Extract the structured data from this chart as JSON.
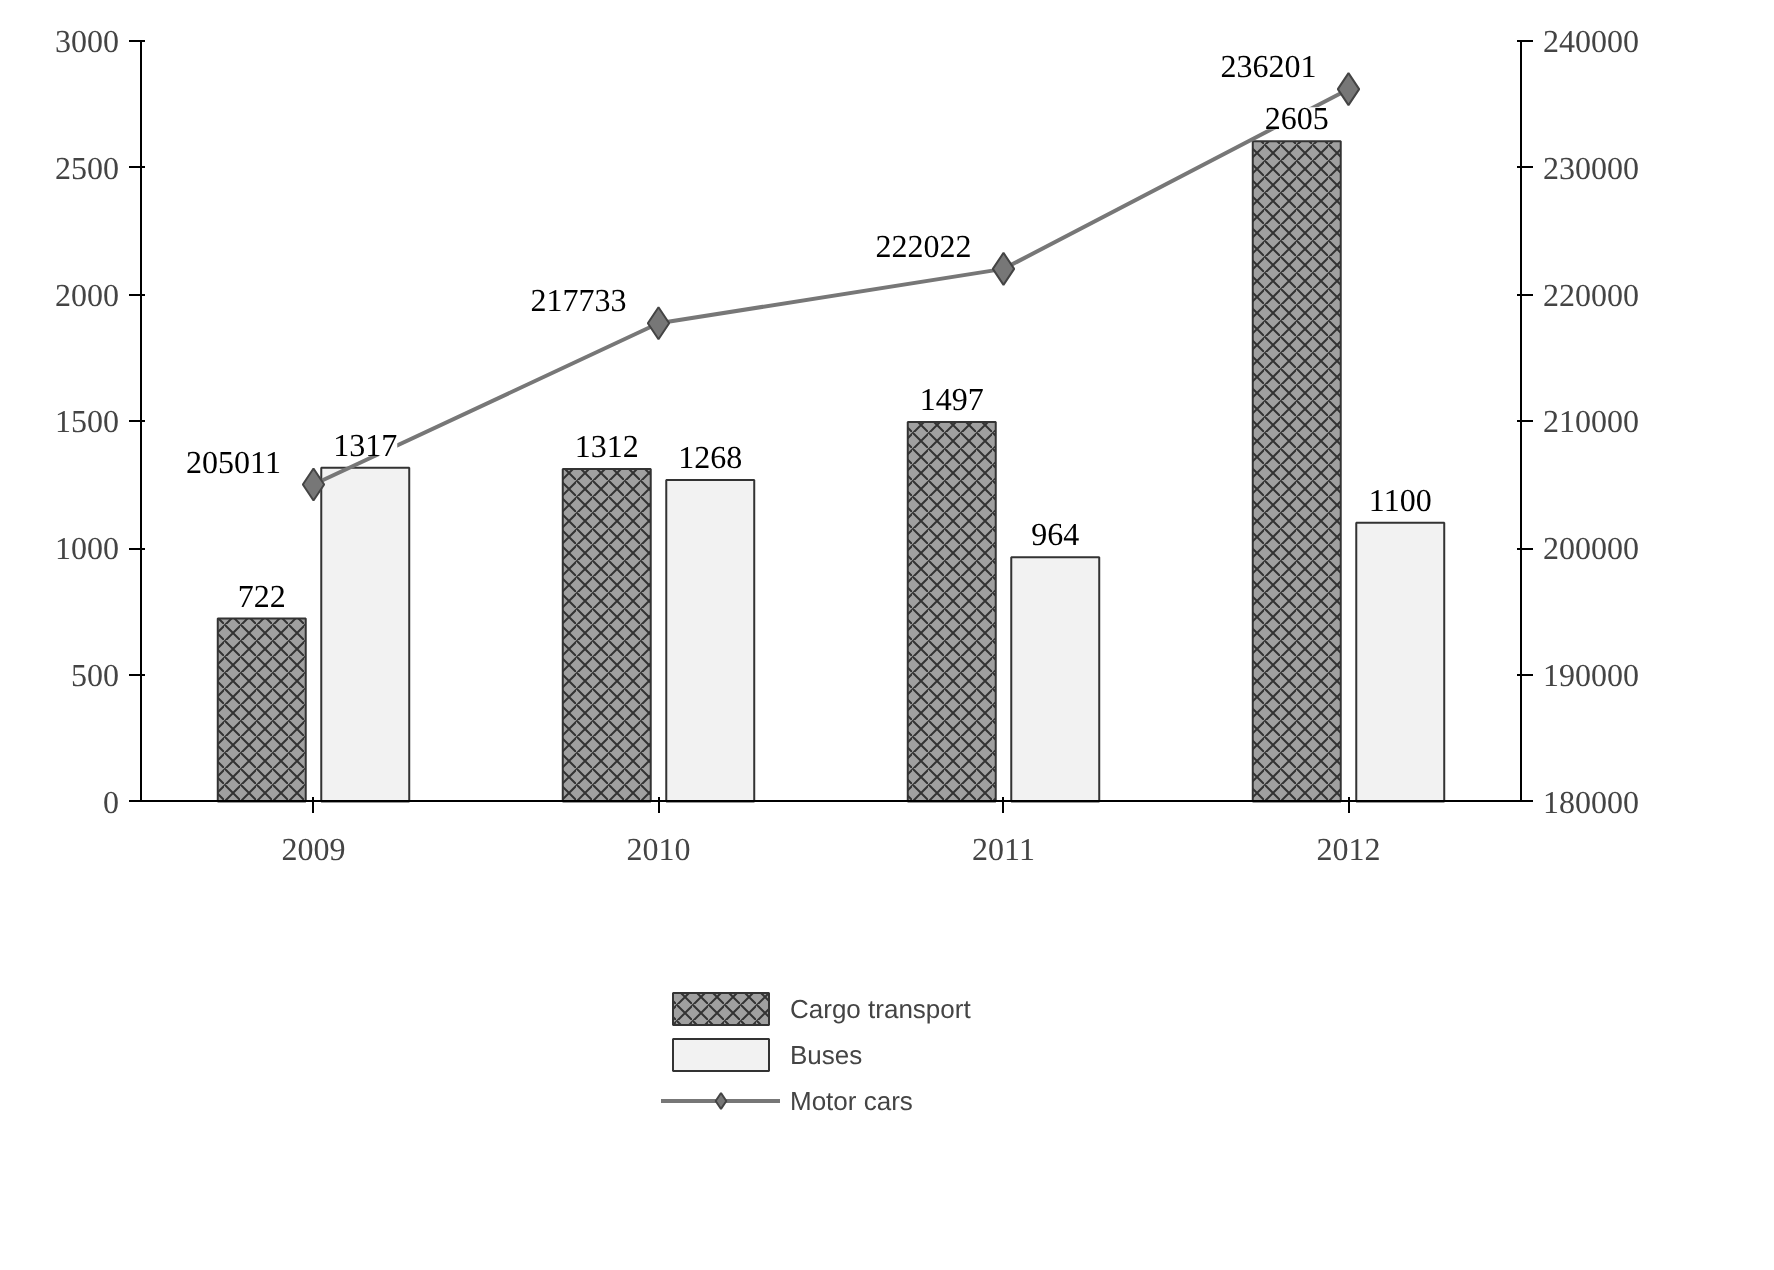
{
  "chart_data": {
    "type": "bar",
    "categories": [
      "2009",
      "2010",
      "2011",
      "2012"
    ],
    "series": [
      {
        "name": "Cargo transport",
        "color": "#a0a0a0",
        "values": [
          722,
          1312,
          1497,
          2605
        ]
      },
      {
        "name": "Buses",
        "color": "#f2f2f2",
        "values": [
          1317,
          1268,
          964,
          1100
        ]
      },
      {
        "name": "Motor cars",
        "type": "line",
        "axis": "y2",
        "color": "#777777",
        "marker": "diamond",
        "values": [
          205011,
          217733,
          222022,
          236201
        ]
      }
    ],
    "ylim": [
      0,
      3000
    ],
    "yticks": [
      0,
      500,
      1000,
      1500,
      2000,
      2500,
      3000
    ],
    "y2lim": [
      180000,
      240000
    ],
    "y2ticks": [
      180000,
      190000,
      200000,
      210000,
      220000,
      230000,
      240000
    ],
    "data_labels": true,
    "grid": false,
    "legend": "bottom"
  }
}
